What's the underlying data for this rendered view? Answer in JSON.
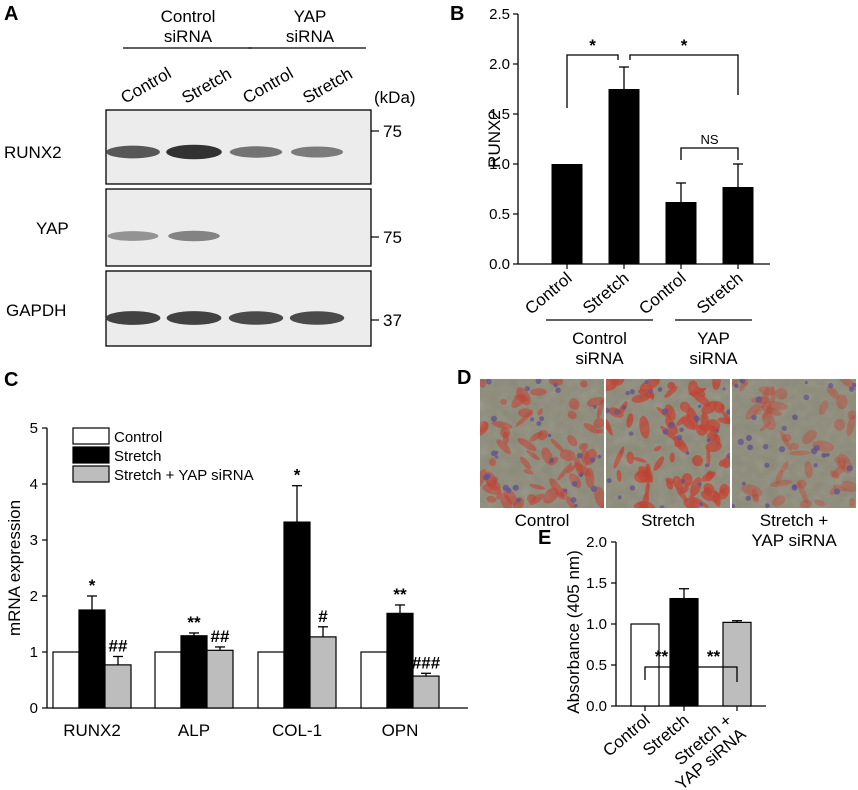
{
  "panels": {
    "A": {
      "letter": "A",
      "group_labels": [
        {
          "line1": "Control",
          "line2": "siRNA"
        },
        {
          "line1": "YAP",
          "line2": "siRNA"
        }
      ],
      "lane_labels": [
        "Control",
        "Stretch",
        "Control",
        "Stretch"
      ],
      "unit_label": "(kDa)",
      "blots": [
        {
          "name": "RUNX2",
          "marker": "75",
          "band_intensity": [
            0.72,
            0.95,
            0.55,
            0.5
          ]
        },
        {
          "name": "YAP",
          "marker": "75",
          "band_intensity": [
            0.35,
            0.45,
            0,
            0
          ]
        },
        {
          "name": "GAPDH",
          "marker": "37",
          "band_intensity": [
            0.85,
            0.85,
            0.8,
            0.8
          ]
        }
      ]
    },
    "D": {
      "letter": "D",
      "captions": [
        {
          "line1": "Control",
          "line2": ""
        },
        {
          "line1": "Stretch",
          "line2": ""
        },
        {
          "line1": "Stretch +",
          "line2": "YAP siRNA"
        }
      ],
      "stain_level": [
        0.5,
        0.85,
        0.2
      ],
      "colors": {
        "background": "#8c8a78",
        "stain": "#c23a2a",
        "nuclei": "#5a4a8a"
      }
    }
  },
  "chart_data": [
    {
      "panel": "B",
      "type": "bar",
      "ylabel": "RUNX2",
      "ylim": [
        0,
        2.5
      ],
      "yticks": [
        "0.0",
        "0.5",
        "1.0",
        "1.5",
        "2.0",
        "2.5"
      ],
      "categories": [
        "Control",
        "Stretch",
        "Control",
        "Stretch"
      ],
      "groups": [
        {
          "line1": "Control",
          "line2": "siRNA"
        },
        {
          "line1": "YAP",
          "line2": "siRNA"
        }
      ],
      "values": [
        1.0,
        1.75,
        0.62,
        0.77
      ],
      "errors": [
        0,
        0.22,
        0.19,
        0.23
      ],
      "bar_color": "#000000",
      "significance": [
        {
          "from": 0,
          "to": 1,
          "label": "*"
        },
        {
          "from": 1,
          "to": 3,
          "label": "*"
        },
        {
          "from": 2,
          "to": 3,
          "label": "NS"
        }
      ]
    },
    {
      "panel": "C",
      "type": "bar",
      "ylabel": "mRNA expression",
      "ylim": [
        0,
        5
      ],
      "yticks": [
        "0",
        "1",
        "2",
        "3",
        "4",
        "5"
      ],
      "categories": [
        "RUNX2",
        "ALP",
        "COL-1",
        "OPN"
      ],
      "legend_position": "top-left",
      "series": [
        {
          "name": "Control",
          "color": "#ffffff",
          "values": [
            1,
            1,
            1,
            1
          ],
          "errors": [
            0,
            0,
            0,
            0
          ],
          "marks": [
            "",
            "",
            "",
            ""
          ]
        },
        {
          "name": "Stretch",
          "color": "#000000",
          "values": [
            1.75,
            1.29,
            3.32,
            1.69
          ],
          "errors": [
            0.25,
            0.05,
            0.65,
            0.15
          ],
          "marks": [
            "*",
            "**",
            "*",
            "**"
          ]
        },
        {
          "name": "Stretch + YAP siRNA",
          "color": "#bdbdbd",
          "values": [
            0.77,
            1.03,
            1.27,
            0.57
          ],
          "errors": [
            0.15,
            0.06,
            0.18,
            0.05
          ],
          "marks": [
            "##",
            "##",
            "#",
            "###"
          ]
        }
      ]
    },
    {
      "panel": "E",
      "type": "bar",
      "ylabel": "Absorbance (405 nm)",
      "ylim": [
        0,
        2.0
      ],
      "yticks": [
        "0.0",
        "0.5",
        "1.0",
        "1.5",
        "2.0"
      ],
      "categories": [
        "Control",
        "Stretch",
        "Stretch + YAP siRNA"
      ],
      "values": [
        1.0,
        1.31,
        1.02
      ],
      "errors": [
        0,
        0.12,
        0.02
      ],
      "colors": [
        "#ffffff",
        "#000000",
        "#bdbdbd"
      ],
      "significance": [
        {
          "from": 0,
          "to": 1,
          "label": "**"
        },
        {
          "from": 1,
          "to": 2,
          "label": "**"
        }
      ]
    }
  ]
}
